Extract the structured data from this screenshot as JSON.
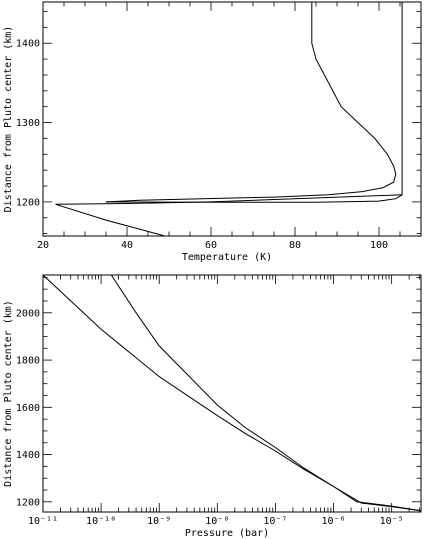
{
  "chart_data": [
    {
      "type": "line",
      "xlabel": "Temperature (K)",
      "ylabel": "Distance from Pluto center (km)",
      "xlim": [
        20,
        110
      ],
      "ylim": [
        1157,
        1452
      ],
      "xticks": [
        20,
        40,
        60,
        80,
        100
      ],
      "yticks": [
        1200,
        1300,
        1400
      ],
      "xminor_step": 5,
      "yminor_step": 20,
      "series": [
        {
          "x": [
            84,
            84,
            85,
            88,
            91,
            95,
            99,
            102,
            103.5,
            104,
            103.5,
            101,
            96,
            88,
            75,
            58,
            43,
            35
          ],
          "y": [
            1452,
            1400,
            1380,
            1350,
            1320,
            1300,
            1280,
            1260,
            1245,
            1235,
            1225,
            1218,
            1213,
            1209,
            1206,
            1204,
            1202,
            1200
          ]
        },
        {
          "x": [
            35,
            60,
            85,
            100,
            104,
            105.5,
            105.5
          ],
          "y": [
            1200,
            1199.5,
            1199.5,
            1201,
            1204,
            1209,
            1452
          ]
        },
        {
          "x": [
            105.5,
            80,
            60,
            40,
            23,
            35,
            49
          ],
          "y": [
            1209,
            1204,
            1200,
            1198,
            1197,
            1177,
            1157
          ]
        }
      ]
    },
    {
      "type": "line",
      "xlabel": "Pressure (bar)",
      "ylabel": "Distance from Pluto center (km)",
      "xscale": "log",
      "xlim": [
        1e-11,
        3.2e-05
      ],
      "ylim": [
        1157,
        2160
      ],
      "xticks": [
        "10⁻¹¹",
        "10⁻¹⁰",
        "10⁻⁹",
        "10⁻⁸",
        "10⁻⁷",
        "10⁻⁶",
        "10⁻⁵"
      ],
      "yticks": [
        1200,
        1400,
        1600,
        1800,
        2000
      ],
      "yminor_step": 50,
      "series": [
        {
          "x": [
            1e-11,
            1e-10,
            1e-09,
            1e-08,
            3e-08,
            1e-07,
            3e-07,
            1e-06,
            3e-06,
            1e-05,
            3.2e-05
          ],
          "y": [
            2160,
            1930,
            1730,
            1565,
            1490,
            1415,
            1340,
            1265,
            1195,
            1180,
            1162
          ]
        },
        {
          "x": [
            1.5e-10,
            4e-10,
            1e-09,
            1e-08,
            3e-08,
            1e-07,
            3e-07,
            1e-06,
            2.5e-06,
            1e-05,
            3.2e-05
          ],
          "y": [
            2160,
            2000,
            1860,
            1610,
            1515,
            1430,
            1345,
            1265,
            1200,
            1182,
            1162
          ]
        }
      ]
    }
  ]
}
